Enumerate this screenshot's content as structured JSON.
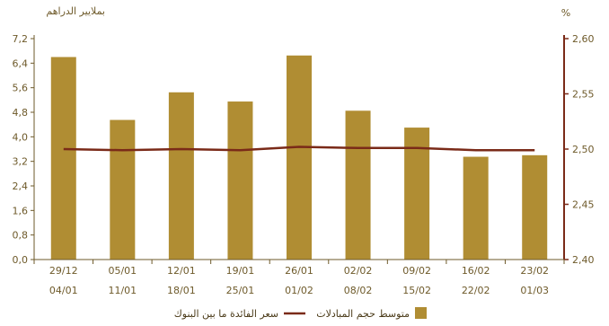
{
  "chart_data": {
    "type": "bar",
    "left_axis_unit": "بملايير الدراهم",
    "right_axis_unit": "%",
    "categories": [
      [
        "29/12",
        "04/01"
      ],
      [
        "05/01",
        "11/01"
      ],
      [
        "12/01",
        "18/01"
      ],
      [
        "19/01",
        "25/01"
      ],
      [
        "26/01",
        "01/02"
      ],
      [
        "02/02",
        "08/02"
      ],
      [
        "09/02",
        "15/02"
      ],
      [
        "16/02",
        "22/02"
      ],
      [
        "23/02",
        "01/03"
      ]
    ],
    "left_axis": {
      "ylim": [
        0,
        7.2
      ],
      "ticks": [
        "0,0",
        "0,8",
        "1,6",
        "2,4",
        "3,2",
        "4,0",
        "4,8",
        "5,6",
        "6,4",
        "7,2"
      ],
      "tick_values": [
        0,
        0.8,
        1.6,
        2.4,
        3.2,
        4.0,
        4.8,
        5.6,
        6.4,
        7.2
      ]
    },
    "right_axis": {
      "ylim": [
        2.4,
        2.6
      ],
      "ticks": [
        "2,40",
        "2,45",
        "2,50",
        "2,55",
        "2,60"
      ],
      "tick_values": [
        2.4,
        2.45,
        2.5,
        2.55,
        2.6
      ]
    },
    "series": [
      {
        "name": "متوسط حجم المبادلات",
        "kind": "bar",
        "axis": "left",
        "color": "#b08d33",
        "values": [
          6.6,
          4.55,
          5.45,
          5.15,
          6.65,
          4.85,
          4.3,
          3.35,
          3.4
        ]
      },
      {
        "name": "سعر الفائدة ما بين البنوك",
        "kind": "line",
        "axis": "right",
        "color": "#7a2a18",
        "values": [
          2.5,
          2.499,
          2.5,
          2.499,
          2.502,
          2.501,
          2.501,
          2.499,
          2.499
        ]
      }
    ],
    "colors": {
      "axis": "#6e5a2a",
      "right_axis": "#7a2a18"
    }
  }
}
